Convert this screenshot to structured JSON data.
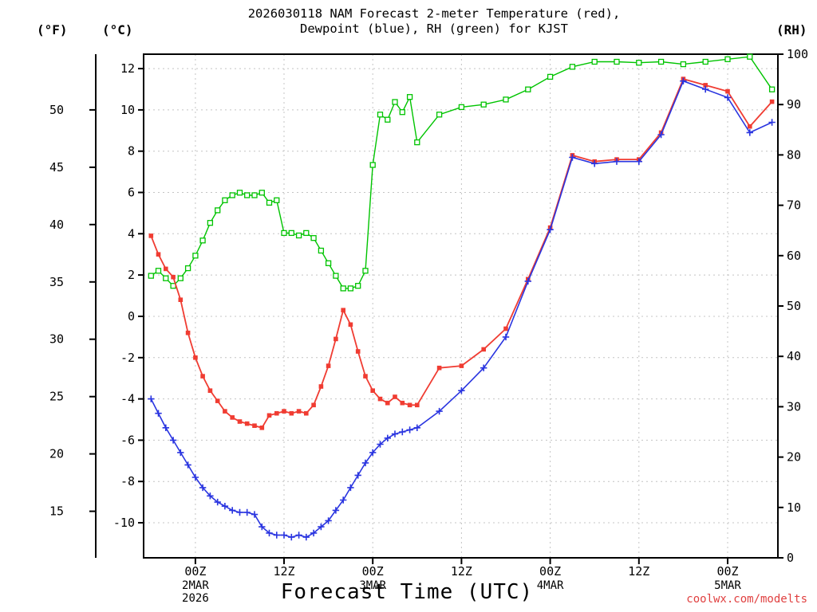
{
  "title": {
    "line1": "2026030118 NAM Forecast 2-meter Temperature (red),",
    "line2": "Dewpoint (blue), RH (green) for KJST"
  },
  "axes": {
    "fahrenheit_label": "(°F)",
    "celsius_label": "(°C)",
    "rh_label": "(RH)"
  },
  "x_axis_title": "Forecast Time (UTC)",
  "watermark": "coolwx.com/modelts",
  "colors": {
    "temperature": "#f03c32",
    "dewpoint": "#2a35e0",
    "rh": "#00c400",
    "watermark": "#e04040",
    "grid": "#c4c4c4"
  },
  "chart_data": {
    "type": "line",
    "title": "2026030118 NAM Forecast 2-meter Temperature (red), Dewpoint (blue), RH (green) for KJST",
    "xlabel": "Forecast Time (UTC)",
    "x_unit": "forecast hour from 2026-03-01 18Z",
    "x_range": [
      -1,
      84.8
    ],
    "celsius_range": [
      -11.7,
      12.7
    ],
    "rh_range": [
      0,
      100
    ],
    "grid": true,
    "legend_position": "in-title",
    "x_hours": [
      0,
      1,
      2,
      3,
      4,
      5,
      6,
      7,
      8,
      9,
      10,
      11,
      12,
      13,
      14,
      15,
      16,
      17,
      18,
      19,
      20,
      21,
      22,
      23,
      24,
      25,
      26,
      27,
      28,
      29,
      30,
      31,
      32,
      33,
      34,
      35,
      36,
      39,
      42,
      45,
      48,
      51,
      54,
      57,
      60,
      63,
      66,
      69,
      72,
      75,
      78,
      81,
      84
    ],
    "x_ticks": [
      {
        "hour": 6,
        "label": "00Z",
        "sub": "2MAR",
        "sub2": "2026"
      },
      {
        "hour": 18,
        "label": "12Z"
      },
      {
        "hour": 30,
        "label": "00Z",
        "sub": "3MAR"
      },
      {
        "hour": 42,
        "label": "12Z"
      },
      {
        "hour": 54,
        "label": "00Z",
        "sub": "4MAR"
      },
      {
        "hour": 66,
        "label": "12Z"
      },
      {
        "hour": 78,
        "label": "00Z",
        "sub": "5MAR"
      }
    ],
    "celsius_ticks": [
      12,
      10,
      8,
      6,
      4,
      2,
      0,
      -2,
      -4,
      -6,
      -8,
      -10
    ],
    "fahrenheit_ticks": [
      50,
      45,
      40,
      35,
      30,
      25,
      20,
      15
    ],
    "rh_ticks": [
      100,
      90,
      80,
      70,
      60,
      50,
      40,
      30,
      20,
      10,
      0
    ],
    "series": [
      {
        "name": "2-meter Temperature (C)",
        "color": "#f03c32",
        "marker": "filled-square",
        "axis": "celsius",
        "width": 1.8,
        "z_order": 1,
        "values": [
          3.9,
          3.0,
          2.3,
          1.9,
          0.8,
          -0.8,
          -2.0,
          -2.9,
          -3.6,
          -4.1,
          -4.6,
          -4.9,
          -5.1,
          -5.2,
          -5.3,
          -5.4,
          -4.8,
          -4.7,
          -4.6,
          -4.7,
          -4.6,
          -4.7,
          -4.3,
          -3.4,
          -2.4,
          -1.1,
          0.3,
          -0.4,
          -1.7,
          -2.9,
          -3.6,
          -4.0,
          -4.2,
          -3.9,
          -4.2,
          -4.3,
          -4.3,
          -2.5,
          -2.4,
          -1.6,
          -0.6,
          1.8,
          4.3,
          7.8,
          7.5,
          7.6,
          7.6,
          8.9,
          11.5,
          11.2,
          10.9,
          9.2,
          10.4
        ]
      },
      {
        "name": "Dewpoint (C)",
        "color": "#2a35e0",
        "marker": "plus",
        "axis": "celsius",
        "width": 1.6,
        "z_order": 2,
        "values": [
          -4.0,
          -4.7,
          -5.4,
          -6.0,
          -6.6,
          -7.2,
          -7.8,
          -8.3,
          -8.7,
          -9.0,
          -9.2,
          -9.4,
          -9.5,
          -9.5,
          -9.6,
          -10.2,
          -10.5,
          -10.6,
          -10.6,
          -10.7,
          -10.6,
          -10.7,
          -10.5,
          -10.2,
          -9.9,
          -9.4,
          -8.9,
          -8.3,
          -7.7,
          -7.1,
          -6.6,
          -6.2,
          -5.9,
          -5.7,
          -5.6,
          -5.5,
          -5.4,
          -4.6,
          -3.6,
          -2.5,
          -1.0,
          1.7,
          4.2,
          7.7,
          7.4,
          7.5,
          7.5,
          8.8,
          11.4,
          11.0,
          10.6,
          8.9,
          9.4
        ]
      },
      {
        "name": "Relative Humidity (%)",
        "color": "#00c400",
        "marker": "open-square",
        "axis": "rh",
        "width": 1.4,
        "z_order": 0,
        "values": [
          56,
          57,
          55.5,
          54,
          55.5,
          57.5,
          60,
          63,
          66.5,
          69,
          71,
          72,
          72.5,
          72,
          72,
          72.5,
          70.5,
          71,
          64.5,
          64.5,
          64,
          64.5,
          63.5,
          61,
          58.5,
          56,
          53.5,
          53.5,
          54,
          57,
          78,
          88,
          87,
          90.5,
          88.5,
          91.5,
          82.5,
          88,
          89.5,
          90,
          91,
          93,
          95.5,
          97.5,
          98.5,
          98.5,
          98.3,
          98.5,
          98,
          98.5,
          99,
          99.5,
          93
        ]
      }
    ]
  }
}
